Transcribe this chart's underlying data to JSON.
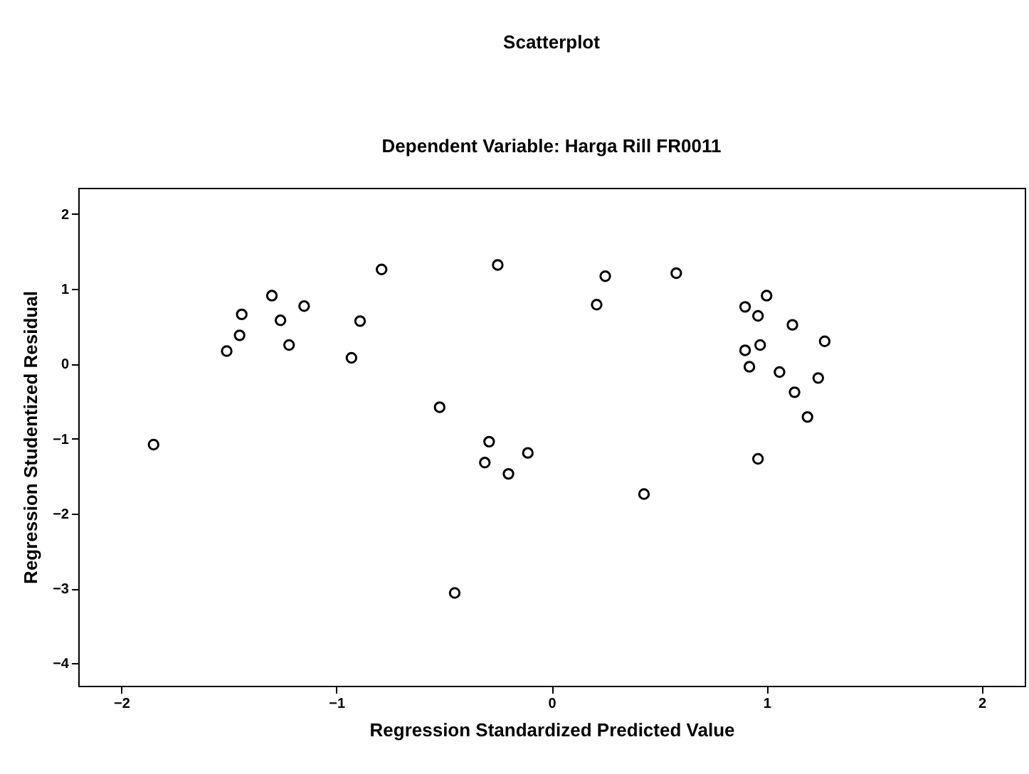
{
  "chart_data": {
    "type": "scatter",
    "title": "Scatterplot",
    "subtitle": "Dependent Variable: Harga Rill FR0011",
    "xlabel": "Regression Standardized Predicted Value",
    "ylabel": "Regression Studentized Residual",
    "x": [
      -1.85,
      -1.51,
      -1.45,
      -1.44,
      -1.3,
      -1.26,
      -1.22,
      -1.15,
      -0.93,
      -0.89,
      -0.79,
      -0.52,
      -0.25,
      -0.29,
      -0.31,
      -0.2,
      -0.11,
      -0.45,
      0.21,
      0.25,
      0.58,
      0.43,
      0.9,
      1.0,
      0.96,
      1.12,
      1.27,
      0.97,
      0.9,
      0.92,
      1.06,
      1.24,
      1.13,
      1.19,
      0.96
    ],
    "values": [
      -1.08,
      0.17,
      0.38,
      0.66,
      0.91,
      0.58,
      0.25,
      0.77,
      0.08,
      0.57,
      1.26,
      -0.58,
      1.32,
      -1.04,
      -1.32,
      -1.47,
      -1.19,
      -3.06,
      0.79,
      1.17,
      1.21,
      -1.74,
      0.76,
      0.91,
      0.64,
      0.52,
      0.3,
      0.25,
      0.18,
      -0.04,
      -0.11,
      -0.19,
      -0.38,
      -0.71,
      -1.27
    ],
    "color": "#000000",
    "marker": "circle",
    "grid": false,
    "xlim": [
      -2.2,
      2.2
    ],
    "xticks": [
      -2,
      -1,
      0,
      1,
      2
    ],
    "ylim": [
      -4.3,
      2.35
    ],
    "yticks": [
      -4,
      -3,
      -2,
      -1,
      0,
      1,
      2
    ]
  }
}
